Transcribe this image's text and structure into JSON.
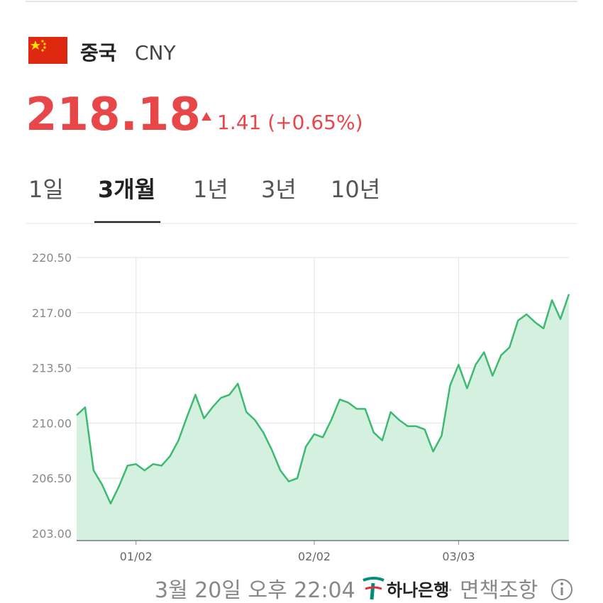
{
  "header": {
    "title": "중국",
    "code": "CNY",
    "price": "218.18",
    "change": "1.41",
    "change_pct": "(+0.65%)"
  },
  "tabs": {
    "items": [
      "1일",
      "3개월",
      "1년",
      "3년",
      "10년"
    ],
    "active": 1
  },
  "chart_data": {
    "type": "area",
    "categories": [
      null,
      null,
      null,
      null,
      null,
      null,
      null,
      "01/02",
      null,
      null,
      null,
      null,
      null,
      null,
      null,
      null,
      null,
      null,
      null,
      null,
      null,
      null,
      null,
      null,
      null,
      null,
      null,
      null,
      "02/02",
      null,
      null,
      null,
      null,
      null,
      null,
      null,
      null,
      null,
      null,
      null,
      null,
      null,
      null,
      null,
      null,
      "03/03",
      null,
      null,
      null,
      null,
      null,
      null,
      null,
      null,
      null,
      null,
      null,
      null,
      null
    ],
    "values": [
      210.5,
      211.0,
      207.0,
      206.1,
      204.9,
      206.0,
      207.3,
      207.4,
      207.0,
      207.4,
      207.3,
      207.9,
      208.9,
      210.4,
      211.8,
      210.3,
      211.0,
      211.6,
      211.8,
      212.5,
      210.7,
      210.2,
      209.4,
      208.3,
      207.0,
      206.3,
      206.5,
      208.5,
      209.3,
      209.1,
      210.2,
      211.5,
      211.3,
      210.9,
      210.9,
      209.4,
      208.9,
      210.7,
      210.2,
      209.8,
      209.8,
      209.6,
      208.2,
      209.2,
      212.4,
      213.7,
      212.2,
      213.7,
      214.5,
      213.0,
      214.3,
      214.8,
      216.5,
      216.9,
      216.4,
      216.0,
      217.8,
      216.6,
      218.18
    ],
    "color": "#3dba72",
    "fill": "#d4f0df",
    "ylim": [
      202.55,
      220.5
    ],
    "yticks": [
      {
        "value": 203,
        "label": "203.00"
      },
      {
        "value": 206.5,
        "label": "206.50"
      },
      {
        "value": 210,
        "label": "210.00"
      },
      {
        "value": 213.5,
        "label": "213.50"
      },
      {
        "value": 217,
        "label": "217.00"
      },
      {
        "value": 220.5,
        "label": "220.50"
      }
    ],
    "grid": true
  },
  "footer": {
    "timestamp": "3월 20일 오후 22:04",
    "bank": "하나은행",
    "separator": "·",
    "disclaimer": "면책조항"
  }
}
